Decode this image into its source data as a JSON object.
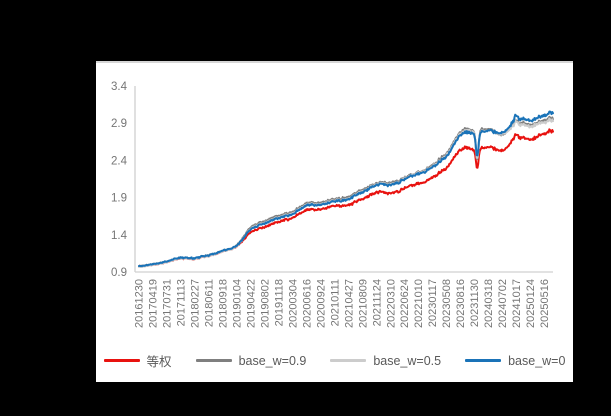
{
  "colors": {
    "background": "#000000",
    "panel": "#ffffff",
    "axis_line": "#d0d0d0",
    "tick_text": "#757575",
    "legend_text": "#595959",
    "red": "#e8120f",
    "dark_gray": "#7f7f7f",
    "light_gray": "#cccccc",
    "blue": "#1a73b8"
  },
  "chart_data": {
    "type": "line",
    "title": "",
    "xlabel": "",
    "ylabel": "",
    "grid": false,
    "legend_position": "bottom",
    "y_axis": {
      "min": 0.9,
      "max": 3.4,
      "step": 0.5,
      "tick_labels": [
        "3.4",
        "2.9",
        "2.4",
        "1.9",
        "1.4",
        "0.9"
      ]
    },
    "x_axis": {
      "rotation": -90,
      "labels": [
        "20161230",
        "20170419",
        "20170731",
        "20171113",
        "20180227",
        "20180611",
        "20180918",
        "20190104",
        "20190422",
        "20190802",
        "20191118",
        "20200304",
        "20200616",
        "20200924",
        "20210111",
        "20210427",
        "20210809",
        "20211124",
        "20220310",
        "20220624",
        "20221010",
        "20230117",
        "20230508",
        "20230816",
        "20231130",
        "20240318",
        "20240702",
        "20241017",
        "20250124",
        "20250516"
      ],
      "data_extends_past_last_label": true,
      "t_end": 29.6
    },
    "legend": [
      {
        "key": "equal-weight",
        "label": "等权",
        "color": "#e8120f"
      },
      {
        "key": "base-w-09",
        "label": "base_w=0.9",
        "color": "#7f7f7f"
      },
      {
        "key": "base-w-05",
        "label": "base_w=0.5",
        "color": "#cccccc"
      },
      {
        "key": "base-w-0",
        "label": "base_w=0",
        "color": "#1a73b8"
      }
    ],
    "series": [
      {
        "name": "等权",
        "key": "equal-weight",
        "color": "#e8120f",
        "anchor_values": [
          0.97,
          1.0,
          1.03,
          1.09,
          1.07,
          1.12,
          1.17,
          1.24,
          1.44,
          1.51,
          1.57,
          1.63,
          1.74,
          1.74,
          1.79,
          1.8,
          1.88,
          1.98,
          1.95,
          2.03,
          2.09,
          2.16,
          2.3,
          2.56,
          2.56,
          2.58,
          2.52,
          2.72,
          2.68,
          2.76,
          2.84
        ]
      },
      {
        "name": "base_w=0.9",
        "key": "base-w-09",
        "color": "#7f7f7f",
        "anchor_values": [
          0.97,
          1.01,
          1.04,
          1.1,
          1.08,
          1.13,
          1.18,
          1.25,
          1.51,
          1.59,
          1.65,
          1.71,
          1.83,
          1.83,
          1.88,
          1.91,
          2.0,
          2.1,
          2.09,
          2.17,
          2.24,
          2.33,
          2.49,
          2.8,
          2.82,
          2.82,
          2.74,
          2.91,
          2.88,
          2.93,
          3.01
        ]
      },
      {
        "name": "base_w=0.5",
        "key": "base-w-05",
        "color": "#cccccc",
        "anchor_values": [
          0.96,
          1.0,
          1.03,
          1.09,
          1.07,
          1.12,
          1.17,
          1.24,
          1.49,
          1.57,
          1.63,
          1.69,
          1.81,
          1.81,
          1.86,
          1.89,
          1.98,
          2.09,
          2.07,
          2.16,
          2.23,
          2.31,
          2.47,
          2.78,
          2.8,
          2.8,
          2.75,
          2.89,
          2.86,
          2.91,
          2.98
        ]
      },
      {
        "name": "base_w=0",
        "key": "base-w-0",
        "color": "#1a73b8",
        "anchor_values": [
          0.97,
          1.01,
          1.04,
          1.1,
          1.08,
          1.13,
          1.18,
          1.25,
          1.48,
          1.56,
          1.62,
          1.68,
          1.8,
          1.8,
          1.85,
          1.88,
          1.97,
          2.08,
          2.06,
          2.15,
          2.22,
          2.3,
          2.45,
          2.76,
          2.78,
          2.8,
          2.76,
          2.96,
          2.94,
          3.0,
          3.1
        ]
      }
    ],
    "events": [
      {
        "name": "feb-2024-crash-spike",
        "t": 24.18,
        "sigma": 0.1,
        "depths": [
          -0.26,
          -0.4,
          -0.37,
          -0.32
        ]
      },
      {
        "name": "oct-2024-rally-spike",
        "t": 26.95,
        "sigma": 0.09,
        "depths": [
          0.05,
          0.05,
          0.05,
          0.07
        ]
      }
    ]
  }
}
